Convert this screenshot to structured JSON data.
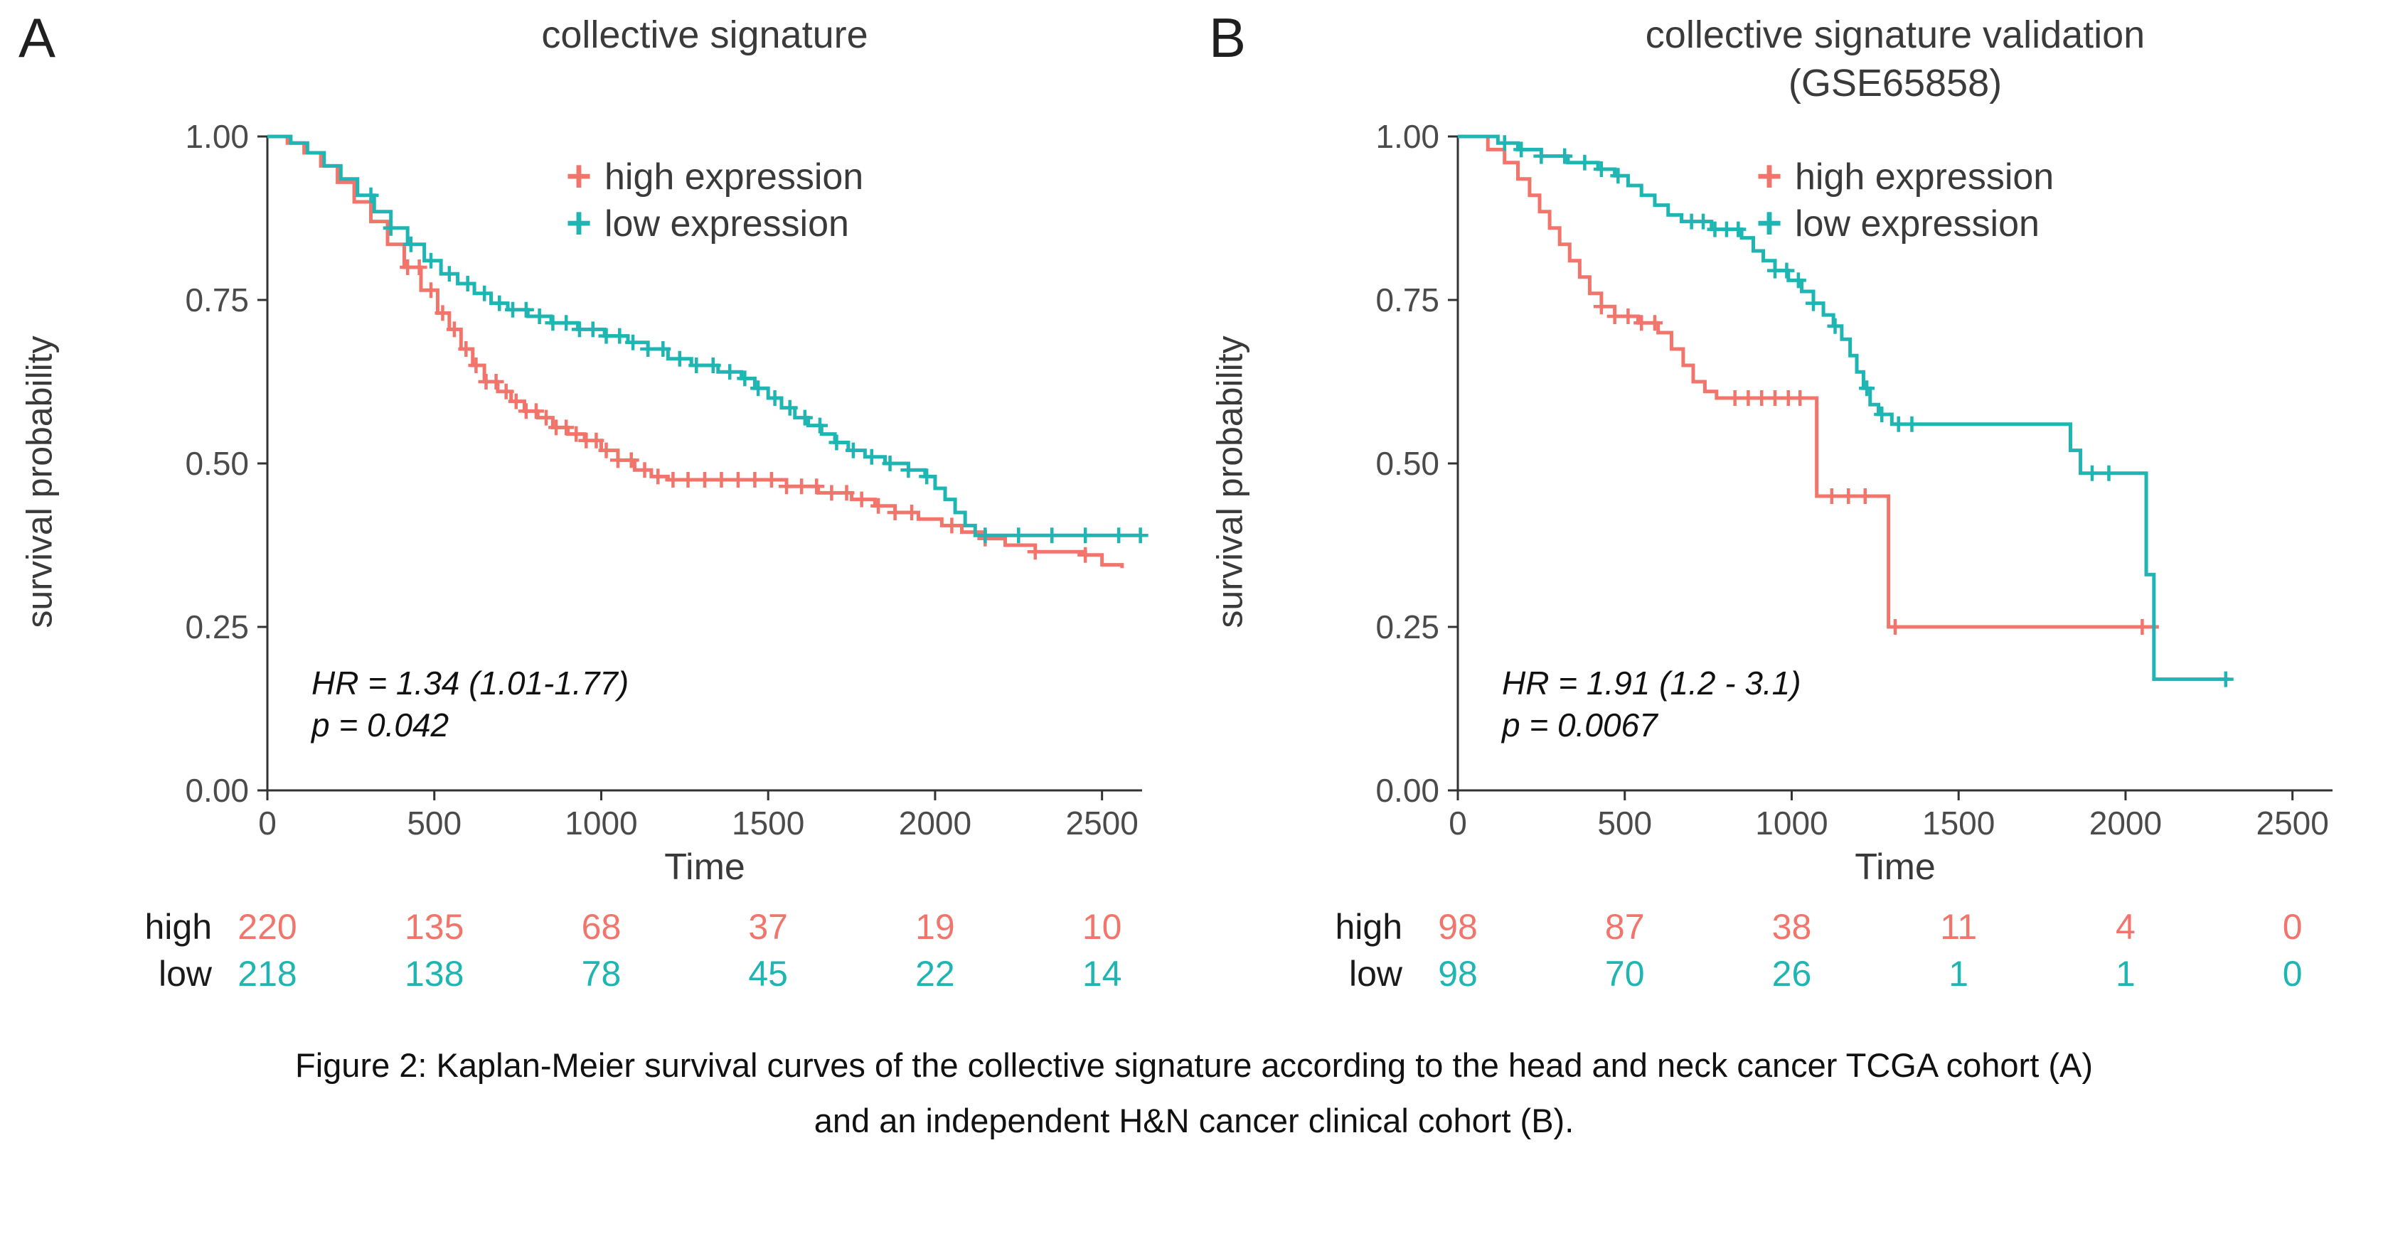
{
  "colors": {
    "high_expression": "#F2756C",
    "low_expression": "#1EB5B2",
    "axis": "#333333",
    "tick_text": "#4B4B4B"
  },
  "caption": {
    "line1": "Figure 2: Kaplan-Meier survival curves of the collective signature according to the head and neck cancer TCGA cohort (A)",
    "line2": "and an independent H&N cancer clinical cohort (B)."
  },
  "chart_data": [
    {
      "type": "line",
      "subtype": "kaplan_meier_step",
      "panel_label": "A",
      "title": "collective signature",
      "title_line2": "",
      "xlabel": "Time",
      "ylabel": "survival probability",
      "xlim": [
        0,
        2620
      ],
      "ylim": [
        0,
        1
      ],
      "xticks": [
        0,
        500,
        1000,
        1500,
        2000,
        2500
      ],
      "yticks": [
        0,
        0.25,
        0.5,
        0.75,
        1
      ],
      "grid": false,
      "legend_position": "top-right-inside",
      "annotation": {
        "hr": "HR = 1.34 (1.01-1.77)",
        "p": "p = 0.042"
      },
      "series": [
        {
          "name": "high expression",
          "color": "#F2756C",
          "steps": [
            [
              0,
              1.0
            ],
            [
              60,
              0.99
            ],
            [
              110,
              0.975
            ],
            [
              160,
              0.955
            ],
            [
              210,
              0.93
            ],
            [
              260,
              0.9
            ],
            [
              310,
              0.87
            ],
            [
              360,
              0.835
            ],
            [
              410,
              0.8
            ],
            [
              460,
              0.765
            ],
            [
              510,
              0.73
            ],
            [
              545,
              0.705
            ],
            [
              580,
              0.675
            ],
            [
              615,
              0.65
            ],
            [
              650,
              0.625
            ],
            [
              690,
              0.61
            ],
            [
              730,
              0.595
            ],
            [
              770,
              0.58
            ],
            [
              810,
              0.57
            ],
            [
              855,
              0.555
            ],
            [
              900,
              0.545
            ],
            [
              950,
              0.535
            ],
            [
              1000,
              0.52
            ],
            [
              1050,
              0.505
            ],
            [
              1100,
              0.49
            ],
            [
              1150,
              0.48
            ],
            [
              1200,
              0.475
            ],
            [
              1490,
              0.475
            ],
            [
              1555,
              0.465
            ],
            [
              1650,
              0.455
            ],
            [
              1750,
              0.445
            ],
            [
              1820,
              0.435
            ],
            [
              1880,
              0.425
            ],
            [
              1950,
              0.415
            ],
            [
              2020,
              0.405
            ],
            [
              2080,
              0.395
            ],
            [
              2150,
              0.385
            ],
            [
              2210,
              0.375
            ],
            [
              2300,
              0.365
            ],
            [
              2450,
              0.36
            ],
            [
              2500,
              0.345
            ],
            [
              2560,
              0.34
            ]
          ],
          "censor_times": [
            420,
            455,
            490,
            525,
            560,
            595,
            625,
            655,
            685,
            715,
            745,
            775,
            805,
            835,
            865,
            895,
            925,
            955,
            985,
            1015,
            1050,
            1090,
            1130,
            1170,
            1215,
            1260,
            1310,
            1360,
            1410,
            1460,
            1510,
            1555,
            1600,
            1645,
            1690,
            1735,
            1780,
            1830,
            1880,
            1930,
            2050,
            2150,
            2300,
            2450
          ]
        },
        {
          "name": "low expression",
          "color": "#1EB5B2",
          "steps": [
            [
              0,
              1.0
            ],
            [
              70,
              0.99
            ],
            [
              120,
              0.975
            ],
            [
              170,
              0.955
            ],
            [
              220,
              0.935
            ],
            [
              270,
              0.91
            ],
            [
              320,
              0.885
            ],
            [
              370,
              0.86
            ],
            [
              420,
              0.835
            ],
            [
              470,
              0.81
            ],
            [
              520,
              0.79
            ],
            [
              570,
              0.775
            ],
            [
              620,
              0.76
            ],
            [
              670,
              0.745
            ],
            [
              720,
              0.735
            ],
            [
              780,
              0.725
            ],
            [
              850,
              0.715
            ],
            [
              930,
              0.705
            ],
            [
              1010,
              0.695
            ],
            [
              1080,
              0.685
            ],
            [
              1140,
              0.675
            ],
            [
              1200,
              0.66
            ],
            [
              1270,
              0.65
            ],
            [
              1350,
              0.64
            ],
            [
              1420,
              0.63
            ],
            [
              1460,
              0.615
            ],
            [
              1500,
              0.6
            ],
            [
              1540,
              0.585
            ],
            [
              1580,
              0.57
            ],
            [
              1620,
              0.558
            ],
            [
              1660,
              0.545
            ],
            [
              1700,
              0.532
            ],
            [
              1740,
              0.52
            ],
            [
              1790,
              0.51
            ],
            [
              1850,
              0.5
            ],
            [
              1920,
              0.49
            ],
            [
              1970,
              0.48
            ],
            [
              2000,
              0.462
            ],
            [
              2030,
              0.445
            ],
            [
              2060,
              0.425
            ],
            [
              2090,
              0.405
            ],
            [
              2120,
              0.39
            ],
            [
              2620,
              0.39
            ]
          ],
          "censor_times": [
            310,
            370,
            430,
            490,
            545,
            600,
            650,
            695,
            735,
            775,
            815,
            855,
            895,
            935,
            975,
            1015,
            1055,
            1095,
            1140,
            1185,
            1235,
            1285,
            1335,
            1385,
            1430,
            1470,
            1520,
            1565,
            1610,
            1655,
            1705,
            1755,
            1810,
            1865,
            1920,
            1975,
            2150,
            2250,
            2350,
            2450,
            2550,
            2615
          ]
        }
      ],
      "risk_table": {
        "times": [
          0,
          500,
          1000,
          1500,
          2000,
          2500
        ],
        "rows": [
          {
            "label": "high",
            "counts": [
              220,
              135,
              68,
              37,
              19,
              10
            ]
          },
          {
            "label": "low",
            "counts": [
              218,
              138,
              78,
              45,
              22,
              14
            ]
          }
        ]
      }
    },
    {
      "type": "line",
      "subtype": "kaplan_meier_step",
      "panel_label": "B",
      "title": "collective signature validation",
      "title_line2": "(GSE65858)",
      "xlabel": "Time",
      "ylabel": "survival probability",
      "xlim": [
        0,
        2620
      ],
      "ylim": [
        0,
        1
      ],
      "xticks": [
        0,
        500,
        1000,
        1500,
        2000,
        2500
      ],
      "yticks": [
        0,
        0.25,
        0.5,
        0.75,
        1
      ],
      "grid": false,
      "legend_position": "top-right-inside",
      "annotation": {
        "hr": "HR = 1.91 (1.2 - 3.1)",
        "p": "p = 0.0067"
      },
      "series": [
        {
          "name": "high expression",
          "color": "#F2756C",
          "steps": [
            [
              0,
              1.0
            ],
            [
              90,
              0.98
            ],
            [
              140,
              0.96
            ],
            [
              180,
              0.935
            ],
            [
              215,
              0.91
            ],
            [
              245,
              0.885
            ],
            [
              275,
              0.86
            ],
            [
              305,
              0.835
            ],
            [
              335,
              0.81
            ],
            [
              365,
              0.785
            ],
            [
              395,
              0.76
            ],
            [
              430,
              0.74
            ],
            [
              470,
              0.725
            ],
            [
              540,
              0.715
            ],
            [
              600,
              0.7
            ],
            [
              640,
              0.675
            ],
            [
              675,
              0.65
            ],
            [
              705,
              0.625
            ],
            [
              740,
              0.61
            ],
            [
              775,
              0.6
            ],
            [
              1050,
              0.6
            ],
            [
              1075,
              0.45
            ],
            [
              1270,
              0.45
            ],
            [
              1290,
              0.25
            ],
            [
              2100,
              0.25
            ]
          ],
          "censor_times": [
            430,
            470,
            510,
            550,
            590,
            830,
            870,
            910,
            950,
            990,
            1025,
            1120,
            1170,
            1220,
            1310,
            2050
          ]
        },
        {
          "name": "low expression",
          "color": "#1EB5B2",
          "steps": [
            [
              0,
              1.0
            ],
            [
              120,
              0.99
            ],
            [
              180,
              0.98
            ],
            [
              250,
              0.97
            ],
            [
              330,
              0.96
            ],
            [
              420,
              0.95
            ],
            [
              470,
              0.94
            ],
            [
              510,
              0.925
            ],
            [
              550,
              0.91
            ],
            [
              590,
              0.895
            ],
            [
              630,
              0.88
            ],
            [
              670,
              0.87
            ],
            [
              760,
              0.858
            ],
            [
              850,
              0.845
            ],
            [
              885,
              0.825
            ],
            [
              915,
              0.81
            ],
            [
              950,
              0.795
            ],
            [
              990,
              0.78
            ],
            [
              1030,
              0.763
            ],
            [
              1065,
              0.745
            ],
            [
              1095,
              0.727
            ],
            [
              1125,
              0.71
            ],
            [
              1150,
              0.69
            ],
            [
              1175,
              0.665
            ],
            [
              1195,
              0.64
            ],
            [
              1215,
              0.615
            ],
            [
              1235,
              0.59
            ],
            [
              1260,
              0.575
            ],
            [
              1300,
              0.56
            ],
            [
              1800,
              0.56
            ],
            [
              1835,
              0.52
            ],
            [
              1865,
              0.485
            ],
            [
              2040,
              0.485
            ],
            [
              2062,
              0.33
            ],
            [
              2085,
              0.17
            ],
            [
              2310,
              0.17
            ]
          ],
          "censor_times": [
            140,
            190,
            250,
            320,
            380,
            430,
            480,
            700,
            735,
            770,
            805,
            840,
            950,
            985,
            1020,
            1065,
            1130,
            1225,
            1270,
            1320,
            1360,
            1900,
            1950,
            2300
          ]
        }
      ],
      "risk_table": {
        "times": [
          0,
          500,
          1000,
          1500,
          2000,
          2500
        ],
        "rows": [
          {
            "label": "high",
            "counts": [
              98,
              87,
              38,
              11,
              4,
              0
            ]
          },
          {
            "label": "low",
            "counts": [
              98,
              70,
              26,
              1,
              1,
              0
            ]
          }
        ]
      }
    }
  ]
}
